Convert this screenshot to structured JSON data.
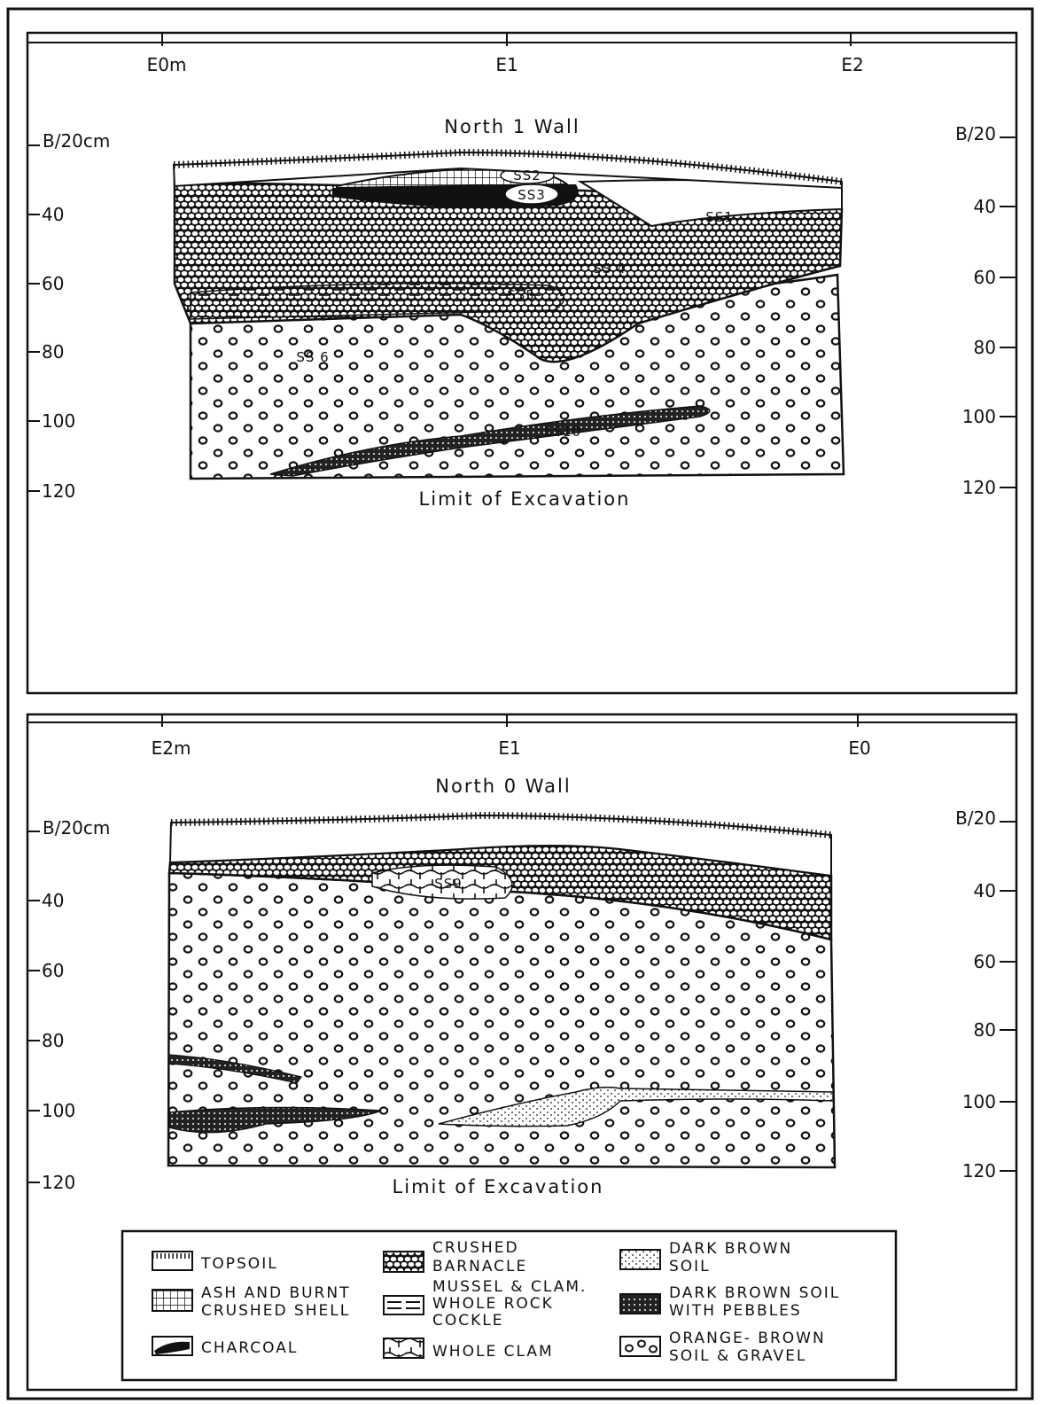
{
  "panel1": {
    "title": "North 1 Wall",
    "x_ticks": [
      "E0m",
      "E1",
      "E2"
    ],
    "depth_label": "B/20cm",
    "depth_ticks": [
      "40",
      "60",
      "80",
      "100",
      "120"
    ],
    "right_ticks": [
      "B/20",
      "40",
      "60",
      "80",
      "100",
      "120"
    ],
    "limit_label": "Limit of Excavation",
    "strata": [
      "SS2",
      "SS3",
      "SS1",
      "SS 4",
      "SS5",
      "SS 6",
      "SS10"
    ]
  },
  "panel2": {
    "title": "North 0 Wall",
    "x_ticks": [
      "E2m",
      "E1",
      "E0"
    ],
    "depth_label": "B/20cm",
    "depth_ticks": [
      "40",
      "60",
      "80",
      "100",
      "120"
    ],
    "right_ticks": [
      "B/20",
      "40",
      "60",
      "80",
      "100",
      "120"
    ],
    "limit_label": "Limit of Excavation",
    "strata": [
      "SS9"
    ]
  },
  "legend": [
    {
      "lines": [
        "TOPSOIL"
      ],
      "pattern": "topsoil"
    },
    {
      "lines": [
        "ASH AND BURNT",
        "CRUSHED SHELL"
      ],
      "pattern": "ash"
    },
    {
      "lines": [
        "CHARCOAL"
      ],
      "pattern": "charcoal"
    },
    {
      "lines": [
        "CRUSHED",
        "BARNACLE"
      ],
      "pattern": "barnacle"
    },
    {
      "lines": [
        "MUSSEL & CLAM.",
        "WHOLE ROCK",
        "COCKLE"
      ],
      "pattern": "mussel"
    },
    {
      "lines": [
        "WHOLE CLAM"
      ],
      "pattern": "clam"
    },
    {
      "lines": [
        "DARK BROWN",
        "SOIL"
      ],
      "pattern": "darkbrown"
    },
    {
      "lines": [
        "DARK BROWN SOIL",
        "WITH PEBBLES"
      ],
      "pattern": "pebbles"
    },
    {
      "lines": [
        "ORANGE- BROWN",
        "SOIL & GRAVEL"
      ],
      "pattern": "gravel"
    }
  ]
}
